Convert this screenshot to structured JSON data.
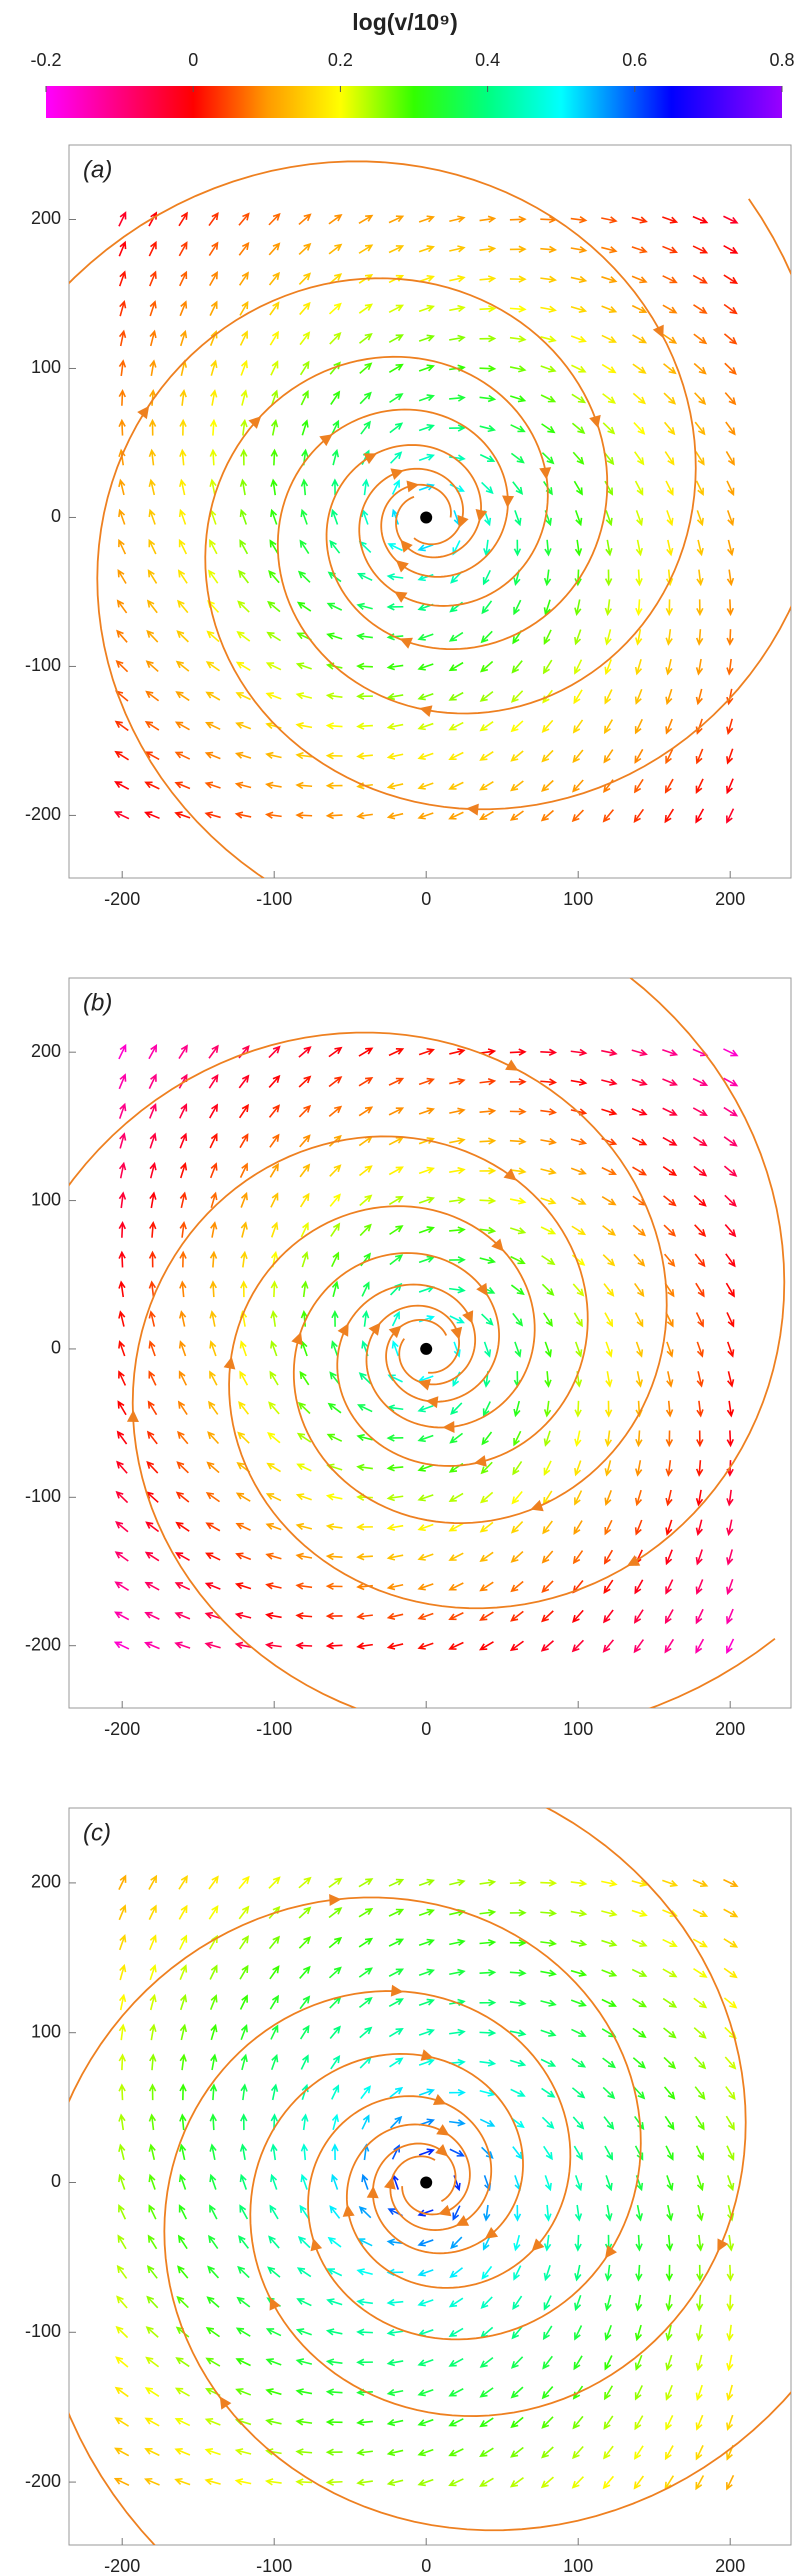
{
  "colorbar": {
    "title": "log(v/10⁹)",
    "range": [
      -0.2,
      0.8
    ],
    "ticks": [
      -0.2,
      0,
      0.2,
      0.4,
      0.6,
      0.8
    ]
  },
  "chart_data": [
    {
      "type": "vector",
      "label": "(a)",
      "xlim": [
        -235,
        240
      ],
      "ylim": [
        -242,
        250
      ],
      "xticks": [
        -200,
        -100,
        0,
        100,
        200
      ],
      "yticks": [
        -200,
        -100,
        0,
        100,
        200
      ],
      "x": [
        -200,
        -180,
        -160,
        -140,
        -120,
        -100,
        -80,
        -60,
        -40,
        -20,
        0,
        20,
        40,
        60,
        80,
        100,
        120,
        140,
        160,
        180,
        200
      ],
      "y": [
        -200,
        -180,
        -160,
        -140,
        -120,
        -100,
        -80,
        -60,
        -40,
        -20,
        0,
        20,
        40,
        60,
        80,
        100,
        120,
        140,
        160,
        180,
        200
      ]
    },
    {
      "type": "vector",
      "label": "(b)",
      "xlim": [
        -235,
        240
      ],
      "ylim": [
        -242,
        250
      ],
      "xticks": [
        -200,
        -100,
        0,
        100,
        200
      ],
      "yticks": [
        -200,
        -100,
        0,
        100,
        200
      ],
      "x": [
        -200,
        -180,
        -160,
        -140,
        -120,
        -100,
        -80,
        -60,
        -40,
        -20,
        0,
        20,
        40,
        60,
        80,
        100,
        120,
        140,
        160,
        180,
        200
      ],
      "y": [
        -200,
        -180,
        -160,
        -140,
        -120,
        -100,
        -80,
        -60,
        -40,
        -20,
        0,
        20,
        40,
        60,
        80,
        100,
        120,
        140,
        160,
        180,
        200
      ]
    },
    {
      "type": "vector",
      "label": "(c)",
      "xlim": [
        -235,
        240
      ],
      "ylim": [
        -242,
        250
      ],
      "xticks": [
        -200,
        -100,
        0,
        100,
        200
      ],
      "yticks": [
        -200,
        -100,
        0,
        100,
        200
      ],
      "x": [
        -200,
        -180,
        -160,
        -140,
        -120,
        -100,
        -80,
        -60,
        -40,
        -20,
        0,
        20,
        40,
        60,
        80,
        100,
        120,
        140,
        160,
        180,
        200
      ],
      "y": [
        -200,
        -180,
        -160,
        -140,
        -120,
        -100,
        -80,
        -60,
        -40,
        -20,
        0,
        20,
        40,
        60,
        80,
        100,
        120,
        140,
        160,
        180,
        200
      ]
    }
  ]
}
